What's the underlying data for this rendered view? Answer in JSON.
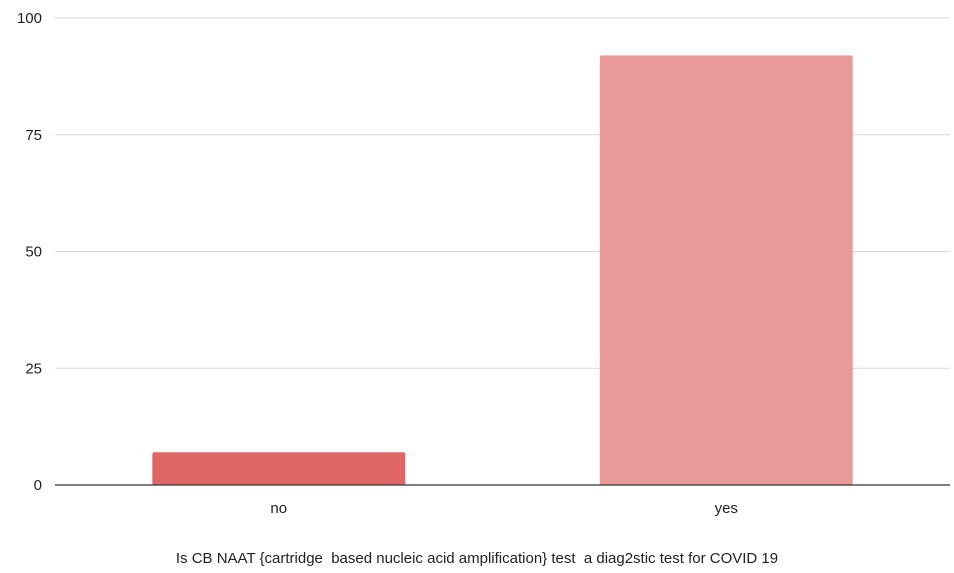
{
  "chart_data": {
    "type": "bar",
    "categories": [
      "no",
      "yes"
    ],
    "values": [
      7,
      92
    ],
    "bar_colors": [
      "#e06666",
      "#ea9999"
    ],
    "title": "",
    "xlabel": "Is CB NAAT {cartridge  based nucleic acid amplification} test  a diag2stic test for COVID 19",
    "ylabel": "",
    "ylim": [
      0,
      100
    ],
    "yticks": [
      0,
      25,
      50,
      75,
      100
    ],
    "grid": true,
    "grid_color": "#d9d9d9",
    "axis_color": "#333333"
  }
}
